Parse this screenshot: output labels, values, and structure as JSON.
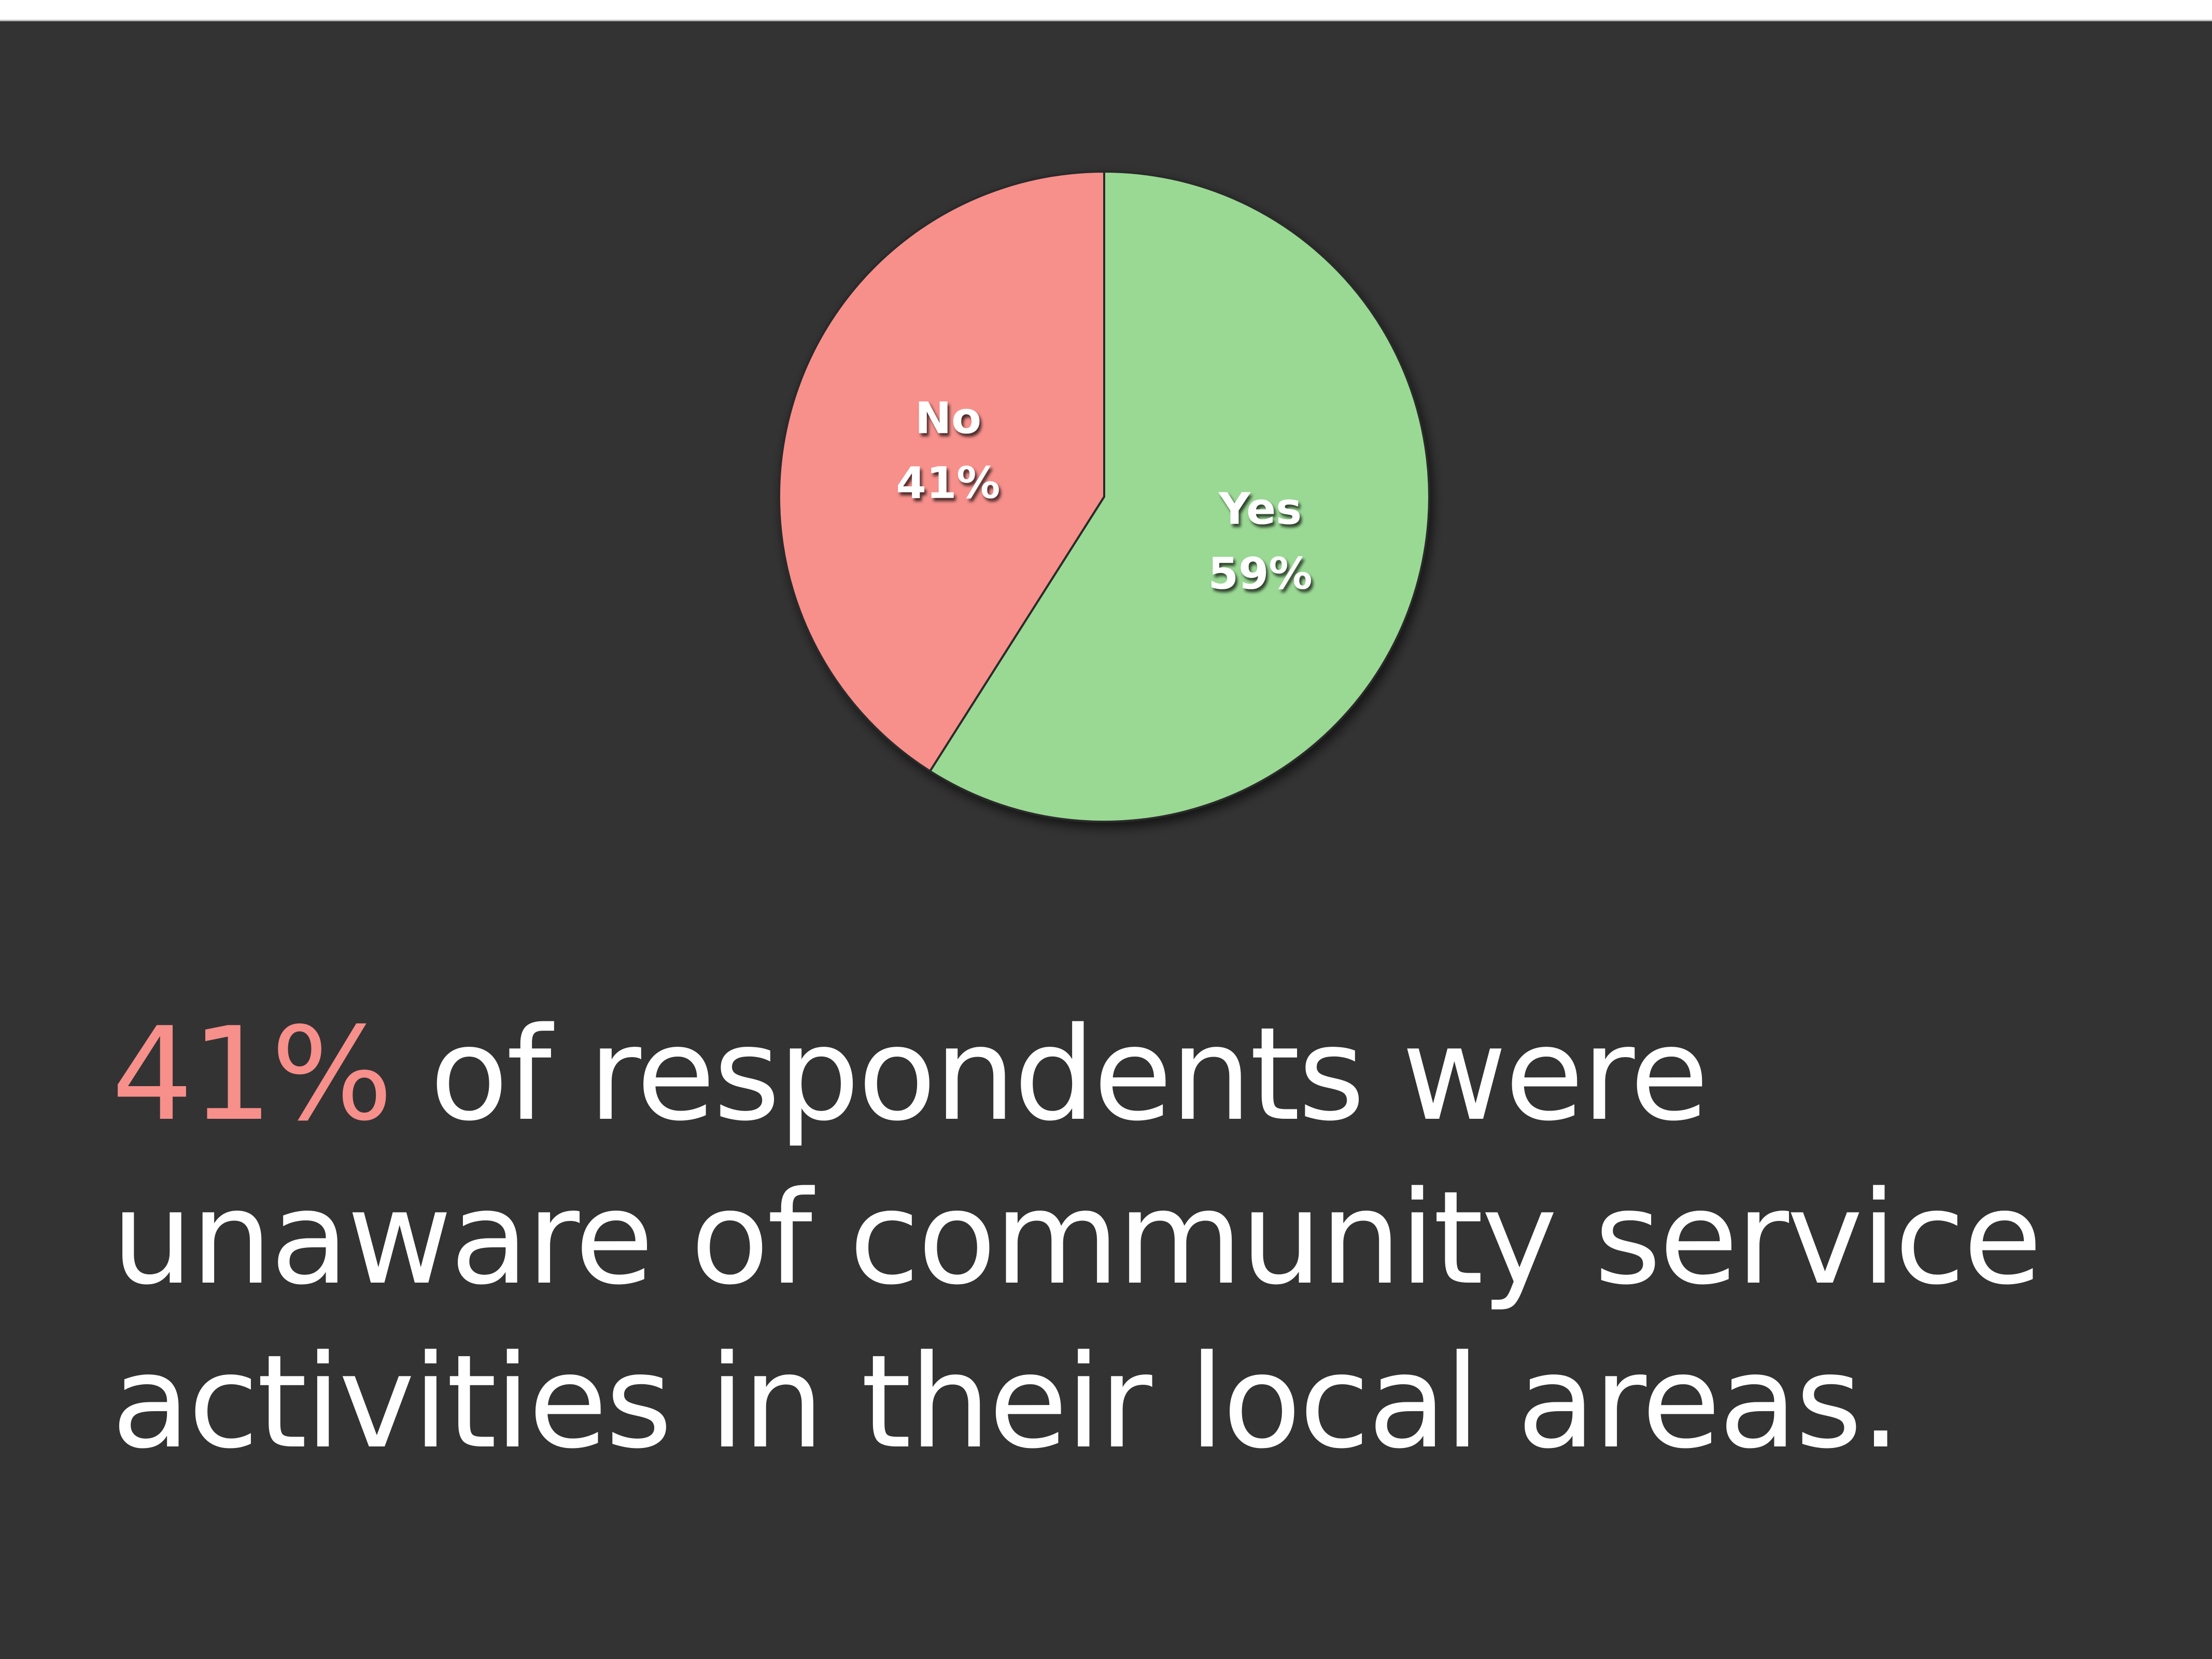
{
  "chart_data": {
    "type": "pie",
    "title": "",
    "slices": [
      {
        "label": "Yes",
        "value": 59,
        "value_label": "59%",
        "color": "#9ad994"
      },
      {
        "label": "No",
        "value": 41,
        "value_label": "41%",
        "color": "#f78f8b"
      }
    ],
    "start_angle_deg": 0,
    "direction": "clockwise",
    "legend": "none"
  },
  "caption": {
    "highlight": "41%",
    "highlight_color": "#f78f8b",
    "text": " of respondents were unaware of community service activities in their local areas."
  },
  "colors": {
    "background": "#333333",
    "text": "#ffffff"
  }
}
